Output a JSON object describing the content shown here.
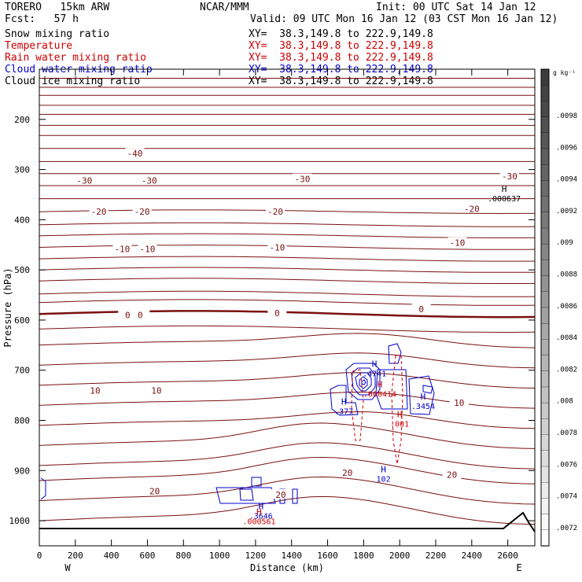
{
  "header": {
    "model": "TORERO   15km ARW",
    "center": "NCAR/MMM",
    "init": "Init: 00 UTC Sat 14 Jan 12",
    "fcst": "Fcst:   57 h",
    "valid": "Valid: 09 UTC Mon 16 Jan 12 (03 CST Mon 16 Jan 12)"
  },
  "fields": [
    {
      "name": "Snow mixing ratio",
      "xy": "XY=  38.3,149.8 to 222.9,149.8",
      "color": "#000000"
    },
    {
      "name": "Temperature",
      "xy": "XY=  38.3,149.8 to 222.9,149.8",
      "color": "#cc0000"
    },
    {
      "name": "Rain water mixing ratio",
      "xy": "XY=  38.3,149.8 to 222.9,149.8",
      "color": "#cc0000"
    },
    {
      "name": "Cloud water mixing ratio",
      "xy": "XY=  38.3,149.8 to 222.9,149.8",
      "color": "#0000cc"
    },
    {
      "name": "Cloud ice mixing ratio",
      "xy": "XY=  38.3,149.8 to 222.9,149.8",
      "color": "#000000"
    }
  ],
  "chart_data": {
    "type": "contour-cross-section",
    "xlabel": "Distance (km)",
    "ylabel": "Pressure (hPa)",
    "x_ticks": [
      0,
      200,
      400,
      600,
      800,
      1000,
      1200,
      1400,
      1600,
      1800,
      2000,
      2200,
      2400,
      2600
    ],
    "x_tick_labels": [
      "0",
      "200",
      "400",
      "600",
      "800",
      "1000",
      "1200",
      "1400",
      "1600",
      "1800",
      "2000",
      "2200",
      "2400",
      "2600"
    ],
    "y_ticks": [
      200,
      300,
      400,
      500,
      600,
      700,
      800,
      900,
      1000
    ],
    "y_tick_labels": [
      "200",
      "300",
      "400",
      "500",
      "600",
      "700",
      "800",
      "900",
      "1000"
    ],
    "xlim": [
      0,
      2750
    ],
    "ylim": [
      1050,
      100
    ],
    "left_end": "W",
    "right_end": "E",
    "colorbar": {
      "unit": "g kg⁻¹",
      "labels": [
        ".0098",
        ".0096",
        ".0094",
        ".0092",
        ".009",
        ".0088",
        ".0086",
        ".0084",
        ".0082",
        ".008",
        ".0078",
        ".0076",
        ".0074",
        ".0072"
      ]
    },
    "temperature_labels": [
      {
        "text": "-40",
        "x": 530,
        "p": 268
      },
      {
        "text": "-30",
        "x": 250,
        "p": 322
      },
      {
        "text": "-30",
        "x": 610,
        "p": 322
      },
      {
        "text": "-30",
        "x": 1460,
        "p": 319
      },
      {
        "text": "-30",
        "x": 2610,
        "p": 313
      },
      {
        "text": "-20",
        "x": 330,
        "p": 384
      },
      {
        "text": "-20",
        "x": 570,
        "p": 384
      },
      {
        "text": "-20",
        "x": 1310,
        "p": 384
      },
      {
        "text": "-20",
        "x": 2400,
        "p": 378
      },
      {
        "text": "-10",
        "x": 460,
        "p": 458
      },
      {
        "text": "-10",
        "x": 600,
        "p": 458
      },
      {
        "text": "-10",
        "x": 1320,
        "p": 455
      },
      {
        "text": "-10",
        "x": 2320,
        "p": 446
      },
      {
        "text": "0",
        "x": 490,
        "p": 590
      },
      {
        "text": "0",
        "x": 560,
        "p": 590
      },
      {
        "text": "0",
        "x": 1320,
        "p": 586
      },
      {
        "text": "0",
        "x": 2120,
        "p": 578
      },
      {
        "text": "10",
        "x": 310,
        "p": 740
      },
      {
        "text": "10",
        "x": 650,
        "p": 740
      },
      {
        "text": "10",
        "x": 2330,
        "p": 765
      },
      {
        "text": "20",
        "x": 640,
        "p": 941
      },
      {
        "text": "20",
        "x": 1340,
        "p": 948
      },
      {
        "text": "20",
        "x": 1710,
        "p": 904
      },
      {
        "text": "20",
        "x": 2290,
        "p": 908
      }
    ],
    "extrema": [
      {
        "mark": "H",
        "value": ".000637",
        "x": 2580,
        "p": 351,
        "color": "#000000"
      },
      {
        "mark": "H",
        "value": ".4741",
        "x": 1860,
        "p": 700,
        "color": "#0000cc"
      },
      {
        "mark": "H",
        "value": ".000414",
        "x": 1890,
        "p": 740,
        "color": "#cc0000"
      },
      {
        "mark": "H",
        "value": ".3454",
        "x": 2130,
        "p": 765,
        "color": "#0000cc"
      },
      {
        "mark": "H",
        "value": ".377",
        "x": 1690,
        "p": 775,
        "color": "#0000cc"
      },
      {
        "mark": "H",
        "value": ".001",
        "x": 2000,
        "p": 800,
        "color": "#cc0000"
      },
      {
        "mark": "H",
        "value": "102",
        "x": 1910,
        "p": 910,
        "color": "#0000cc"
      },
      {
        "mark": "H",
        "value": ".3646",
        "x": 1230,
        "p": 983,
        "color": "#0000cc"
      },
      {
        "mark": "H",
        "value": ".000561",
        "x": 1220,
        "p": 994,
        "color": "#cc0000"
      }
    ]
  }
}
